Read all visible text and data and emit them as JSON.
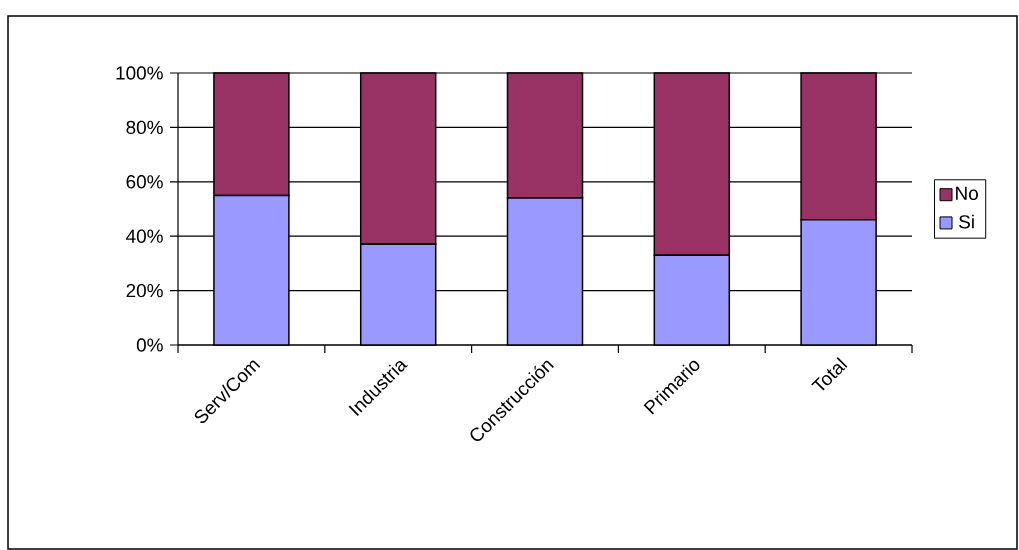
{
  "chart_data": {
    "type": "bar",
    "stacked": true,
    "categories": [
      "Serv/Com",
      "Industria",
      "Construcción",
      "Primario",
      "Total"
    ],
    "series": [
      {
        "name": "Si",
        "color": "#9999ff",
        "values": [
          55,
          37,
          54,
          33,
          46
        ]
      },
      {
        "name": "No",
        "color": "#993366",
        "values": [
          45,
          63,
          46,
          67,
          54
        ]
      }
    ],
    "ylim": [
      0,
      100
    ],
    "yticks": [
      {
        "value": 0,
        "label": "0%"
      },
      {
        "value": 20,
        "label": "20%"
      },
      {
        "value": 40,
        "label": "40%"
      },
      {
        "value": 60,
        "label": "60%"
      },
      {
        "value": 80,
        "label": "80%"
      },
      {
        "value": 100,
        "label": "100%"
      }
    ],
    "grid": "y",
    "legend": "right"
  }
}
